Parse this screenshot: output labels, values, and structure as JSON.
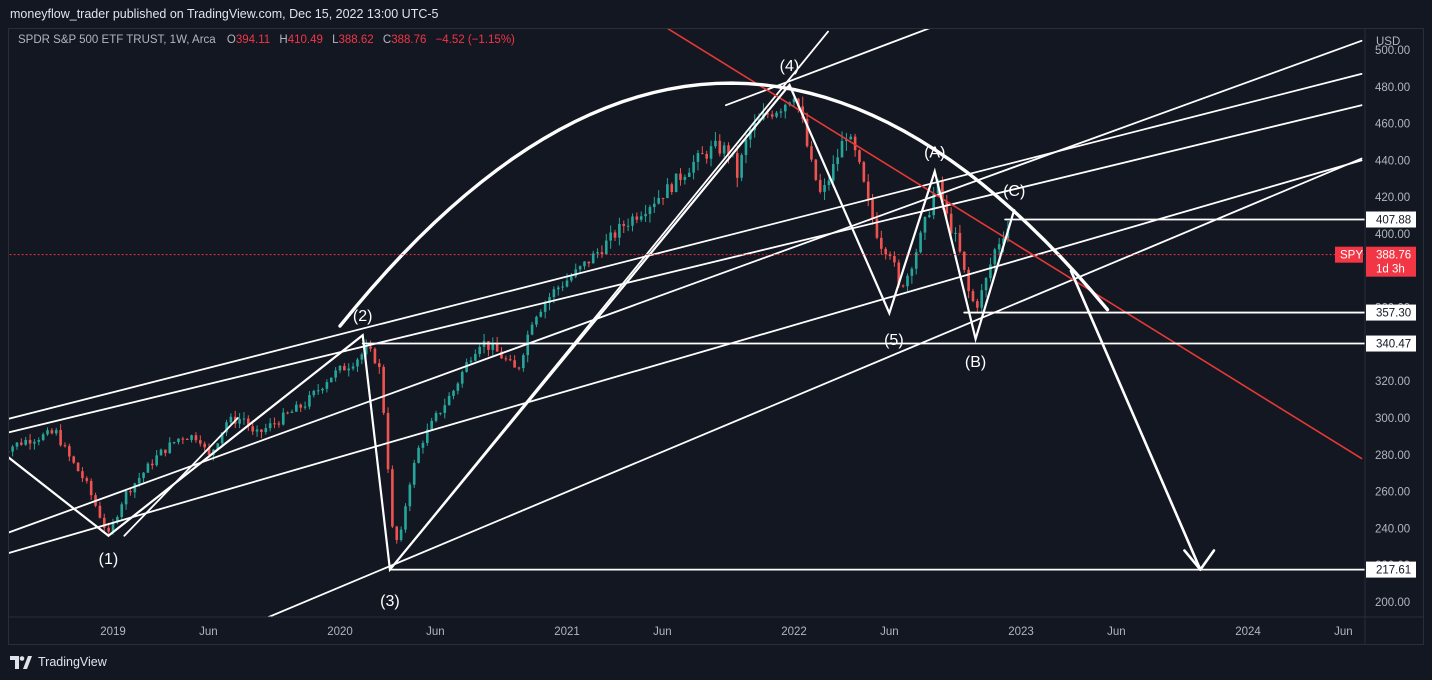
{
  "publisher_line": "moneyflow_trader published on TradingView.com, Dec 15, 2022 13:00 UTC-5",
  "legend": {
    "symbol": "SPDR S&P 500 ETF TRUST, 1W, Arca",
    "open_label": "O",
    "open": "394.11",
    "high_label": "H",
    "high": "410.49",
    "low_label": "L",
    "low": "388.62",
    "close_label": "C",
    "close": "388.76",
    "change": "−4.52 (−1.15%)"
  },
  "footer": {
    "brand": "TradingView"
  },
  "colors": {
    "background": "#131722",
    "up": "#26a69a",
    "down": "#ef5350",
    "price_tag": "#f23645",
    "trendline_red": "#e53935",
    "drawing": "#ffffff"
  },
  "chart_data": {
    "type": "candlestick",
    "title": "SPDR S&P 500 ETF TRUST, 1W, Arca",
    "currency": "USD",
    "ylim": [
      190,
      505
    ],
    "y_ticks": [
      "200.00",
      "220.00",
      "240.00",
      "260.00",
      "280.00",
      "300.00",
      "320.00",
      "340.00",
      "360.00",
      "380.00",
      "400.00",
      "420.00",
      "440.00",
      "460.00",
      "480.00",
      "500.00"
    ],
    "x_ticks": [
      {
        "t": 2019.0,
        "label": "2019"
      },
      {
        "t": 2019.42,
        "label": "Jun"
      },
      {
        "t": 2020.0,
        "label": "2020"
      },
      {
        "t": 2020.42,
        "label": "Jun"
      },
      {
        "t": 2021.0,
        "label": "2021"
      },
      {
        "t": 2021.42,
        "label": "Jun"
      },
      {
        "t": 2022.0,
        "label": "2022"
      },
      {
        "t": 2022.42,
        "label": "Jun"
      },
      {
        "t": 2023.0,
        "label": "2023"
      },
      {
        "t": 2023.42,
        "label": "Jun"
      },
      {
        "t": 2024.0,
        "label": "2024"
      },
      {
        "t": 2024.42,
        "label": "Jun"
      }
    ],
    "price_path": [
      [
        2018.5,
        282
      ],
      [
        2018.62,
        288
      ],
      [
        2018.75,
        292
      ],
      [
        2018.8,
        280
      ],
      [
        2018.88,
        265
      ],
      [
        2018.98,
        236
      ],
      [
        2019.05,
        258
      ],
      [
        2019.2,
        280
      ],
      [
        2019.3,
        290
      ],
      [
        2019.38,
        290
      ],
      [
        2019.42,
        278
      ],
      [
        2019.5,
        298
      ],
      [
        2019.58,
        300
      ],
      [
        2019.62,
        290
      ],
      [
        2019.72,
        298
      ],
      [
        2019.85,
        308
      ],
      [
        2019.95,
        322
      ],
      [
        2020.05,
        330
      ],
      [
        2020.12,
        337
      ],
      [
        2020.17,
        330
      ],
      [
        2020.2,
        295
      ],
      [
        2020.23,
        240
      ],
      [
        2020.26,
        230
      ],
      [
        2020.3,
        262
      ],
      [
        2020.35,
        285
      ],
      [
        2020.42,
        300
      ],
      [
        2020.5,
        315
      ],
      [
        2020.58,
        335
      ],
      [
        2020.62,
        342
      ],
      [
        2020.7,
        335
      ],
      [
        2020.78,
        325
      ],
      [
        2020.85,
        355
      ],
      [
        2020.95,
        370
      ],
      [
        2021.05,
        380
      ],
      [
        2021.15,
        392
      ],
      [
        2021.25,
        405
      ],
      [
        2021.35,
        415
      ],
      [
        2021.45,
        425
      ],
      [
        2021.55,
        438
      ],
      [
        2021.65,
        447
      ],
      [
        2021.72,
        445
      ],
      [
        2021.75,
        432
      ],
      [
        2021.8,
        455
      ],
      [
        2021.88,
        465
      ],
      [
        2021.95,
        470
      ],
      [
        2022.0,
        477
      ],
      [
        2022.03,
        465
      ],
      [
        2022.07,
        440
      ],
      [
        2022.12,
        420
      ],
      [
        2022.17,
        435
      ],
      [
        2022.23,
        455
      ],
      [
        2022.28,
        440
      ],
      [
        2022.33,
        415
      ],
      [
        2022.38,
        395
      ],
      [
        2022.43,
        390
      ],
      [
        2022.46,
        370
      ],
      [
        2022.5,
        378
      ],
      [
        2022.55,
        395
      ],
      [
        2022.6,
        415
      ],
      [
        2022.63,
        428
      ],
      [
        2022.67,
        410
      ],
      [
        2022.72,
        395
      ],
      [
        2022.77,
        368
      ],
      [
        2022.8,
        360
      ],
      [
        2022.84,
        372
      ],
      [
        2022.88,
        390
      ],
      [
        2022.92,
        400
      ],
      [
        2022.95,
        405
      ],
      [
        2022.96,
        388.76
      ]
    ],
    "last_price": "388.76",
    "last_price_symbol": "SPY",
    "last_price_countdown": "1d 3h",
    "horizontal_levels": [
      {
        "value": "407.88",
        "from_t": 2022.93
      },
      {
        "value": "357.30",
        "from_t": 2022.75
      },
      {
        "value": "340.47",
        "from_t": 2020.1
      },
      {
        "value": "217.61",
        "from_t": 2020.22
      }
    ],
    "wave_labels": [
      {
        "text": "(1)",
        "t": 2018.98,
        "price": 236,
        "pos": "below"
      },
      {
        "text": "(2)",
        "t": 2020.1,
        "price": 345,
        "pos": "above"
      },
      {
        "text": "(3)",
        "t": 2020.22,
        "price": 213,
        "pos": "below"
      },
      {
        "text": "(4)",
        "t": 2021.98,
        "price": 481,
        "pos": "above"
      },
      {
        "text": "(5)",
        "t": 2022.44,
        "price": 355,
        "pos": "below"
      },
      {
        "text": "(A)",
        "t": 2022.62,
        "price": 434,
        "pos": "above"
      },
      {
        "text": "(B)",
        "t": 2022.8,
        "price": 343,
        "pos": "below"
      },
      {
        "text": "(C)",
        "t": 2022.97,
        "price": 413,
        "pos": "above"
      }
    ],
    "grid": false,
    "legend_position": "top-left"
  }
}
